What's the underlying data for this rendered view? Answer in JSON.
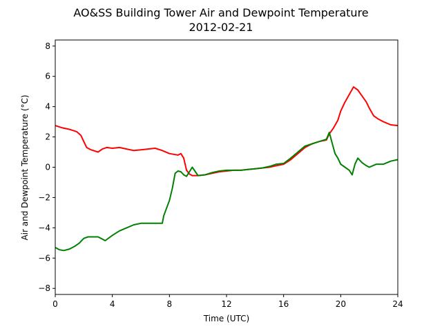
{
  "chart_data": {
    "type": "line",
    "title": "AO&SS Building Tower Air and Dewpoint Temperature",
    "subtitle": "2012-02-21",
    "xlabel": "Time (UTC)",
    "ylabel": "Air and Dewpoint Temperature (°C)",
    "xlim": [
      0,
      24
    ],
    "ylim": [
      -8.4,
      8.4
    ],
    "x_ticks": [
      0,
      4,
      8,
      12,
      16,
      20,
      24
    ],
    "y_ticks": [
      -8,
      -6,
      -4,
      -2,
      0,
      2,
      4,
      6,
      8
    ],
    "grid": false,
    "series": [
      {
        "color": "#ff0000",
        "x": [
          0,
          0.5,
          1,
          1.5,
          1.8,
          2,
          2.2,
          2.5,
          3,
          3.3,
          3.6,
          4,
          4.5,
          5,
          5.5,
          6,
          6.5,
          7,
          7.5,
          8,
          8.3,
          8.6,
          8.8,
          9,
          9.2,
          9.4,
          9.6,
          10,
          10.5,
          11,
          11.5,
          12,
          12.5,
          13,
          13.5,
          14,
          14.5,
          15,
          15.5,
          16,
          16.5,
          17,
          17.5,
          18,
          18.5,
          19,
          19.2,
          19.5,
          19.8,
          20,
          20.3,
          20.6,
          20.9,
          21.2,
          21.5,
          21.8,
          22,
          22.3,
          22.6,
          23,
          23.5,
          24
        ],
        "values": [
          2.75,
          2.6,
          2.5,
          2.35,
          2.1,
          1.7,
          1.3,
          1.15,
          1.0,
          1.2,
          1.3,
          1.25,
          1.3,
          1.2,
          1.1,
          1.15,
          1.2,
          1.25,
          1.1,
          0.9,
          0.85,
          0.8,
          0.9,
          0.6,
          -0.2,
          -0.45,
          -0.55,
          -0.55,
          -0.5,
          -0.4,
          -0.3,
          -0.25,
          -0.2,
          -0.2,
          -0.15,
          -0.1,
          -0.05,
          0.0,
          0.1,
          0.2,
          0.5,
          0.9,
          1.3,
          1.55,
          1.7,
          1.8,
          2.2,
          2.6,
          3.1,
          3.7,
          4.3,
          4.8,
          5.3,
          5.1,
          4.7,
          4.3,
          3.9,
          3.4,
          3.2,
          3.0,
          2.8,
          2.75
        ]
      },
      {
        "color": "#008000",
        "x": [
          0,
          0.3,
          0.6,
          1,
          1.4,
          1.7,
          2,
          2.3,
          2.6,
          3,
          3.3,
          3.5,
          4,
          4.5,
          5,
          5.5,
          6,
          6.5,
          7,
          7.5,
          7.6,
          7.8,
          8,
          8.2,
          8.4,
          8.6,
          8.8,
          9,
          9.2,
          9.4,
          9.6,
          10,
          10.5,
          11,
          11.5,
          12,
          12.5,
          13,
          13.5,
          14,
          14.5,
          15,
          15.5,
          16,
          16.5,
          17,
          17.5,
          18,
          18.5,
          19,
          19.2,
          19.4,
          19.6,
          19.8,
          20,
          20.3,
          20.6,
          20.8,
          21,
          21.2,
          21.5,
          21.8,
          22,
          22.5,
          23,
          23.5,
          24
        ],
        "values": [
          -5.3,
          -5.45,
          -5.5,
          -5.4,
          -5.2,
          -5.0,
          -4.7,
          -4.6,
          -4.6,
          -4.6,
          -4.75,
          -4.85,
          -4.5,
          -4.2,
          -4.0,
          -3.8,
          -3.7,
          -3.7,
          -3.7,
          -3.7,
          -3.2,
          -2.7,
          -2.2,
          -1.4,
          -0.4,
          -0.25,
          -0.3,
          -0.5,
          -0.6,
          -0.3,
          0.0,
          -0.55,
          -0.5,
          -0.35,
          -0.25,
          -0.2,
          -0.2,
          -0.2,
          -0.15,
          -0.1,
          -0.05,
          0.05,
          0.2,
          0.25,
          0.6,
          1.0,
          1.4,
          1.55,
          1.7,
          1.85,
          2.3,
          1.6,
          0.9,
          0.6,
          0.2,
          0.0,
          -0.2,
          -0.5,
          0.2,
          0.6,
          0.3,
          0.1,
          0.0,
          0.2,
          0.2,
          0.4,
          0.5
        ]
      }
    ]
  }
}
